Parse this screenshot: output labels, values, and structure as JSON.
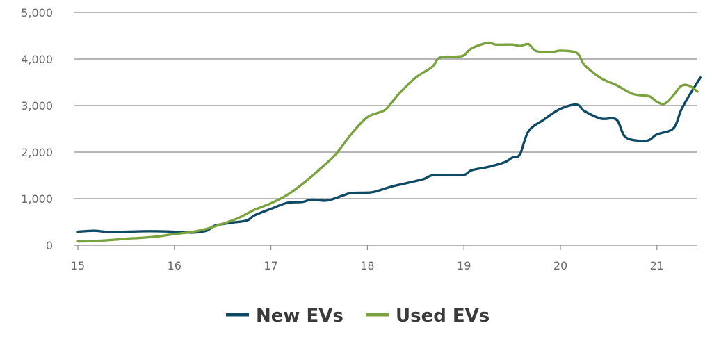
{
  "chart_data": {
    "type": "line",
    "title": "",
    "xlabel": "",
    "ylabel": "",
    "xlim": [
      15,
      21.45
    ],
    "ylim": [
      0,
      5000
    ],
    "x_ticks": [
      15,
      16,
      17,
      18,
      19,
      20,
      21
    ],
    "x_tick_labels": [
      "15",
      "16",
      "17",
      "18",
      "19",
      "20",
      "21"
    ],
    "y_ticks": [
      0,
      1000,
      2000,
      3000,
      4000,
      5000
    ],
    "y_tick_labels": [
      "0",
      "1,000",
      "2,000",
      "3,000",
      "4,000",
      "5,000"
    ],
    "grid": true,
    "legend_position": "bottom-center",
    "series": [
      {
        "name": "New EVs",
        "color": "#0e4a66",
        "points": [
          [
            15.0,
            290
          ],
          [
            15.17,
            310
          ],
          [
            15.33,
            280
          ],
          [
            15.5,
            290
          ],
          [
            15.67,
            300
          ],
          [
            15.83,
            300
          ],
          [
            16.0,
            290
          ],
          [
            16.17,
            270
          ],
          [
            16.33,
            310
          ],
          [
            16.42,
            420
          ],
          [
            16.58,
            480
          ],
          [
            16.75,
            530
          ],
          [
            16.83,
            640
          ],
          [
            17.0,
            780
          ],
          [
            17.17,
            910
          ],
          [
            17.33,
            930
          ],
          [
            17.42,
            980
          ],
          [
            17.58,
            960
          ],
          [
            17.75,
            1070
          ],
          [
            17.83,
            1120
          ],
          [
            18.0,
            1130
          ],
          [
            18.08,
            1150
          ],
          [
            18.25,
            1260
          ],
          [
            18.42,
            1340
          ],
          [
            18.58,
            1420
          ],
          [
            18.67,
            1500
          ],
          [
            18.83,
            1510
          ],
          [
            19.0,
            1510
          ],
          [
            19.08,
            1610
          ],
          [
            19.25,
            1680
          ],
          [
            19.42,
            1780
          ],
          [
            19.5,
            1880
          ],
          [
            19.58,
            1950
          ],
          [
            19.67,
            2450
          ],
          [
            19.83,
            2700
          ],
          [
            20.0,
            2930
          ],
          [
            20.17,
            3020
          ],
          [
            20.25,
            2880
          ],
          [
            20.42,
            2720
          ],
          [
            20.58,
            2700
          ],
          [
            20.67,
            2330
          ],
          [
            20.83,
            2240
          ],
          [
            20.92,
            2260
          ],
          [
            21.0,
            2380
          ],
          [
            21.17,
            2510
          ],
          [
            21.25,
            2900
          ],
          [
            21.33,
            3200
          ],
          [
            21.45,
            3600
          ]
        ]
      },
      {
        "name": "Used EVs",
        "color": "#7aa23f",
        "points": [
          [
            15.0,
            80
          ],
          [
            15.17,
            90
          ],
          [
            15.33,
            110
          ],
          [
            15.5,
            140
          ],
          [
            15.67,
            160
          ],
          [
            15.83,
            190
          ],
          [
            16.0,
            240
          ],
          [
            16.17,
            280
          ],
          [
            16.33,
            350
          ],
          [
            16.5,
            460
          ],
          [
            16.67,
            590
          ],
          [
            16.83,
            760
          ],
          [
            17.0,
            900
          ],
          [
            17.17,
            1080
          ],
          [
            17.33,
            1320
          ],
          [
            17.5,
            1620
          ],
          [
            17.67,
            1950
          ],
          [
            17.83,
            2380
          ],
          [
            18.0,
            2750
          ],
          [
            18.17,
            2890
          ],
          [
            18.25,
            3060
          ],
          [
            18.33,
            3260
          ],
          [
            18.5,
            3600
          ],
          [
            18.67,
            3830
          ],
          [
            18.75,
            4030
          ],
          [
            18.92,
            4050
          ],
          [
            19.0,
            4080
          ],
          [
            19.08,
            4230
          ],
          [
            19.25,
            4350
          ],
          [
            19.33,
            4310
          ],
          [
            19.5,
            4310
          ],
          [
            19.58,
            4280
          ],
          [
            19.67,
            4320
          ],
          [
            19.75,
            4170
          ],
          [
            19.92,
            4150
          ],
          [
            20.0,
            4180
          ],
          [
            20.17,
            4130
          ],
          [
            20.25,
            3870
          ],
          [
            20.42,
            3590
          ],
          [
            20.58,
            3440
          ],
          [
            20.75,
            3250
          ],
          [
            20.92,
            3200
          ],
          [
            21.0,
            3080
          ],
          [
            21.08,
            3040
          ],
          [
            21.17,
            3220
          ],
          [
            21.25,
            3420
          ],
          [
            21.33,
            3430
          ],
          [
            21.42,
            3300
          ]
        ]
      }
    ]
  }
}
